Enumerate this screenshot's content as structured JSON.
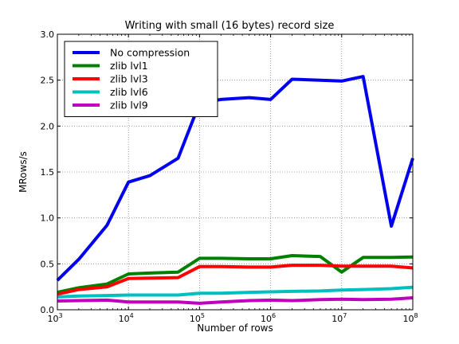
{
  "chart_data": {
    "type": "line",
    "title": "Writing with small (16 bytes) record size",
    "xlabel": "Number of rows",
    "ylabel": "MRows/s",
    "xscale": "log",
    "xlim": [
      1000,
      100000000
    ],
    "ylim": [
      0.0,
      3.0
    ],
    "grid": true,
    "legend_position": "top-left",
    "x_ticks": [
      {
        "value": 1000,
        "base": "10",
        "exp": "3"
      },
      {
        "value": 10000,
        "base": "10",
        "exp": "4"
      },
      {
        "value": 100000,
        "base": "10",
        "exp": "5"
      },
      {
        "value": 1000000,
        "base": "10",
        "exp": "6"
      },
      {
        "value": 10000000,
        "base": "10",
        "exp": "7"
      },
      {
        "value": 100000000,
        "base": "10",
        "exp": "8"
      }
    ],
    "y_ticks": [
      {
        "value": 0.0,
        "label": "0.0"
      },
      {
        "value": 0.5,
        "label": "0.5"
      },
      {
        "value": 1.0,
        "label": "1.0"
      },
      {
        "value": 1.5,
        "label": "1.5"
      },
      {
        "value": 2.0,
        "label": "2.0"
      },
      {
        "value": 2.5,
        "label": "2.5"
      },
      {
        "value": 3.0,
        "label": "3.0"
      }
    ],
    "x": [
      1000,
      2000,
      5000,
      10000,
      20000,
      50000,
      100000,
      200000,
      500000,
      1000000,
      2000000,
      5000000,
      10000000,
      20000000,
      50000000,
      100000000
    ],
    "series": [
      {
        "name": "No compression",
        "color": "#0000ee",
        "values": [
          0.32,
          0.55,
          0.92,
          1.39,
          1.46,
          1.65,
          2.25,
          2.29,
          2.31,
          2.29,
          2.51,
          2.5,
          2.49,
          2.54,
          0.91,
          1.65
        ]
      },
      {
        "name": "zlib lvl1",
        "color": "#008000",
        "values": [
          0.19,
          0.24,
          0.28,
          0.39,
          0.4,
          0.41,
          0.56,
          0.56,
          0.555,
          0.555,
          0.59,
          0.58,
          0.41,
          0.57,
          0.57,
          0.575
        ]
      },
      {
        "name": "zlib lvl3",
        "color": "#ff0000",
        "values": [
          0.17,
          0.22,
          0.25,
          0.34,
          0.345,
          0.35,
          0.47,
          0.47,
          0.465,
          0.465,
          0.485,
          0.485,
          0.475,
          0.475,
          0.475,
          0.455
        ]
      },
      {
        "name": "zlib lvl6",
        "color": "#00bfbf",
        "values": [
          0.14,
          0.15,
          0.155,
          0.16,
          0.16,
          0.16,
          0.18,
          0.18,
          0.19,
          0.195,
          0.2,
          0.205,
          0.215,
          0.22,
          0.23,
          0.245
        ]
      },
      {
        "name": "zlib lvl9",
        "color": "#bf00bf",
        "values": [
          0.095,
          0.1,
          0.105,
          0.085,
          0.085,
          0.085,
          0.07,
          0.085,
          0.1,
          0.105,
          0.1,
          0.11,
          0.115,
          0.11,
          0.115,
          0.13
        ]
      }
    ]
  }
}
